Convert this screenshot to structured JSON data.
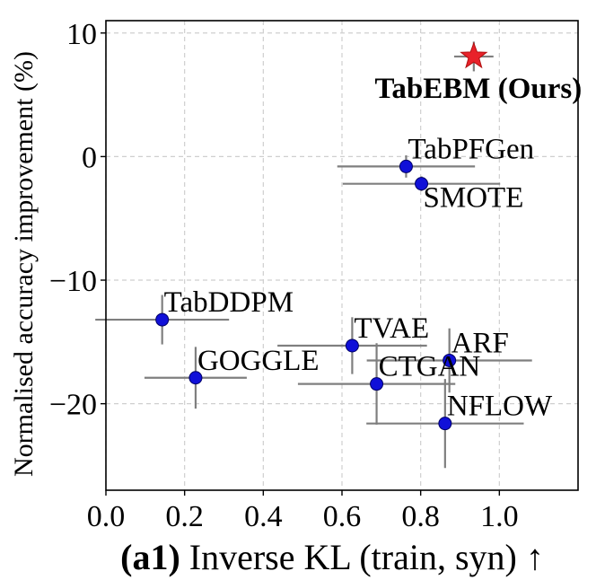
{
  "chart_data": {
    "type": "scatter",
    "title": "",
    "xlabel_prefix": "(a1)",
    "xlabel": "Inverse KL (train, syn) ↑",
    "ylabel": "Normalised accuracy improvement (%)",
    "xlim": [
      0.0,
      1.2
    ],
    "ylim": [
      -27,
      11
    ],
    "grid": true,
    "xticks": [
      0.0,
      0.2,
      0.4,
      0.6,
      0.8,
      1.0
    ],
    "xtick_labels": [
      "0.0",
      "0.2",
      "0.4",
      "0.6",
      "0.8",
      "1.0"
    ],
    "yticks": [
      10,
      0,
      -10,
      -20
    ],
    "ytick_labels": [
      "10",
      "0",
      "−10",
      "−20"
    ],
    "points": [
      {
        "name": "TabEBM (Ours)",
        "x": 0.935,
        "y": 8.1,
        "xerr": 0.05,
        "yerr": 1.2,
        "marker": "star",
        "color": "#e8222a",
        "bold": true,
        "label_pos": "below"
      },
      {
        "name": "TabPFGen",
        "x": 0.763,
        "y": -0.8,
        "xerr": 0.175,
        "yerr": 0.9,
        "marker": "circle",
        "color": "#1010d8",
        "label_pos": "above-right"
      },
      {
        "name": "SMOTE",
        "x": 0.802,
        "y": -2.2,
        "xerr": 0.2,
        "yerr": 0.6,
        "marker": "circle",
        "color": "#1010d8",
        "label_pos": "below-right"
      },
      {
        "name": "TabDDPM",
        "x": 0.143,
        "y": -13.2,
        "xerr": 0.17,
        "yerr": 2.0,
        "marker": "circle",
        "color": "#1010d8",
        "label_pos": "above-right"
      },
      {
        "name": "GOGGLE",
        "x": 0.228,
        "y": -17.9,
        "xerr": 0.13,
        "yerr": 2.5,
        "marker": "circle",
        "color": "#1010d8",
        "label_pos": "above-right"
      },
      {
        "name": "TVAE",
        "x": 0.626,
        "y": -15.3,
        "xerr": 0.19,
        "yerr": 2.3,
        "marker": "circle",
        "color": "#1010d8",
        "label_pos": "above-right"
      },
      {
        "name": "CTGAN",
        "x": 0.688,
        "y": -18.4,
        "xerr": 0.2,
        "yerr": 3.3,
        "marker": "circle",
        "color": "#1010d8",
        "label_pos": "above-right"
      },
      {
        "name": "ARF",
        "x": 0.873,
        "y": -16.5,
        "xerr": 0.21,
        "yerr": 2.6,
        "marker": "circle",
        "color": "#1010d8",
        "label_pos": "above-right"
      },
      {
        "name": "NFLOW",
        "x": 0.862,
        "y": -21.6,
        "xerr": 0.2,
        "yerr": 3.6,
        "marker": "circle",
        "color": "#1010d8",
        "label_pos": "above-right"
      }
    ]
  }
}
